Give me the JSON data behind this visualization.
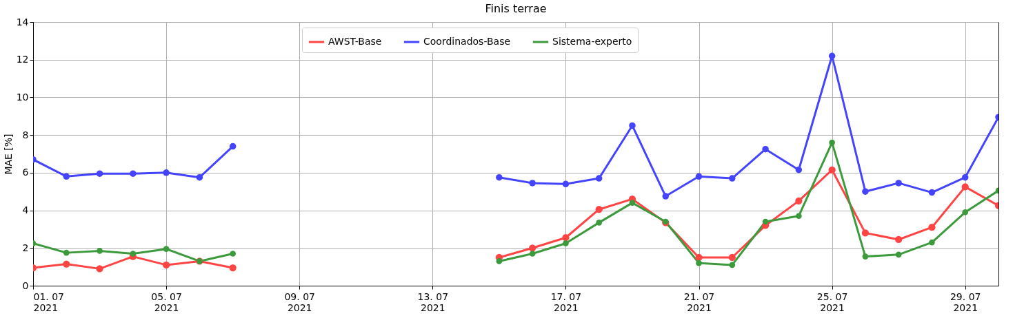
{
  "chart_data": {
    "type": "line",
    "title": "Finis terrae",
    "ylabel": "MAE [%]",
    "x": [
      "2021-07-01",
      "2021-07-02",
      "2021-07-03",
      "2021-07-04",
      "2021-07-05",
      "2021-07-06",
      "2021-07-07",
      "2021-07-08",
      "2021-07-09",
      "2021-07-10",
      "2021-07-11",
      "2021-07-12",
      "2021-07-13",
      "2021-07-14",
      "2021-07-15",
      "2021-07-16",
      "2021-07-17",
      "2021-07-18",
      "2021-07-19",
      "2021-07-20",
      "2021-07-21",
      "2021-07-22",
      "2021-07-23",
      "2021-07-24",
      "2021-07-25",
      "2021-07-26",
      "2021-07-27",
      "2021-07-28",
      "2021-07-29",
      "2021-07-30"
    ],
    "series": [
      {
        "name": "AWST-Base",
        "color": "#ff4444",
        "values": [
          0.95,
          1.15,
          0.9,
          1.55,
          1.1,
          1.3,
          0.95,
          null,
          null,
          null,
          null,
          null,
          null,
          null,
          1.5,
          2.0,
          2.55,
          4.05,
          4.6,
          3.35,
          1.5,
          1.5,
          3.2,
          4.5,
          6.15,
          2.8,
          2.45,
          3.1,
          5.25,
          4.25
        ]
      },
      {
        "name": "Coordinados-Base",
        "color": "#4444ff",
        "values": [
          6.7,
          5.8,
          5.95,
          5.95,
          6.0,
          5.75,
          7.4,
          null,
          null,
          null,
          null,
          null,
          null,
          null,
          5.75,
          5.45,
          5.4,
          5.7,
          8.5,
          4.75,
          5.8,
          5.7,
          7.25,
          6.15,
          12.2,
          5.0,
          5.45,
          4.95,
          5.75,
          8.95
        ]
      },
      {
        "name": "Sistema-experto",
        "color": "#3c9a3c",
        "values": [
          2.25,
          1.75,
          1.85,
          1.7,
          1.95,
          1.3,
          1.7,
          null,
          null,
          null,
          null,
          null,
          null,
          null,
          1.3,
          1.7,
          2.25,
          3.35,
          4.4,
          3.4,
          1.2,
          1.1,
          3.4,
          3.7,
          7.6,
          1.55,
          1.65,
          2.3,
          3.9,
          5.05
        ]
      }
    ],
    "xlim": [
      "2021-07-01",
      "2021-07-30"
    ],
    "xticks": [
      {
        "value": "2021-07-01",
        "label": "01. 07\n2021"
      },
      {
        "value": "2021-07-05",
        "label": "05. 07\n2021"
      },
      {
        "value": "2021-07-09",
        "label": "09. 07\n2021"
      },
      {
        "value": "2021-07-13",
        "label": "13. 07\n2021"
      },
      {
        "value": "2021-07-17",
        "label": "17. 07\n2021"
      },
      {
        "value": "2021-07-21",
        "label": "21. 07\n2021"
      },
      {
        "value": "2021-07-25",
        "label": "25. 07\n2021"
      },
      {
        "value": "2021-07-29",
        "label": "29. 07\n2021"
      }
    ],
    "ylim": [
      0,
      14
    ],
    "yticks": [
      0,
      2,
      4,
      6,
      8,
      10,
      12,
      14
    ],
    "grid": true,
    "legend": "top",
    "marker": "circle",
    "line_style": "solid"
  }
}
